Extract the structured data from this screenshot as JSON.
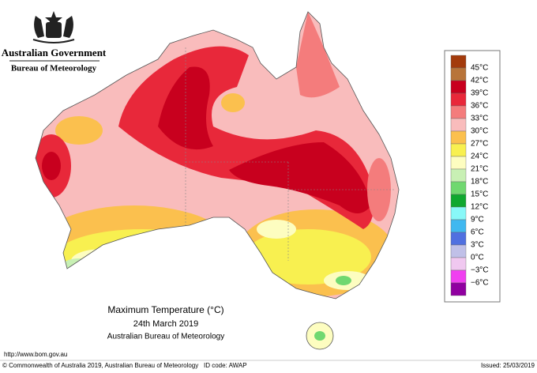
{
  "header": {
    "agency": "Australian Government",
    "bureau": "Bureau of Meteorology"
  },
  "title": {
    "line1": "Maximum Temperature (°C)",
    "line2": "24th March 2019",
    "line3": "Australian Bureau of Meteorology"
  },
  "legend": {
    "labels": [
      "45°C",
      "42°C",
      "39°C",
      "36°C",
      "33°C",
      "30°C",
      "27°C",
      "24°C",
      "21°C",
      "18°C",
      "15°C",
      "12°C",
      "9°C",
      "6°C",
      "3°C",
      "0°C",
      "−3°C",
      "−6°C"
    ],
    "colors": [
      "#a33b0c",
      "#b8743a",
      "#c8001e",
      "#e8283a",
      "#f47c7c",
      "#f9bcbc",
      "#fbc04e",
      "#f8f050",
      "#fdfdc0",
      "#c8f0b4",
      "#70d870",
      "#10a830",
      "#88f8f8",
      "#40b8f0",
      "#5070e0",
      "#c0c0e8",
      "#f0c8f0",
      "#f040f0",
      "#9000a0"
    ]
  },
  "footer": {
    "url": "http://www.bom.gov.au",
    "copyright": "© Commonwealth of Australia 2019, Australian Bureau of Meteorology",
    "id_code": "ID code: AWAP",
    "issued": "Issued: 25/03/2019"
  }
}
